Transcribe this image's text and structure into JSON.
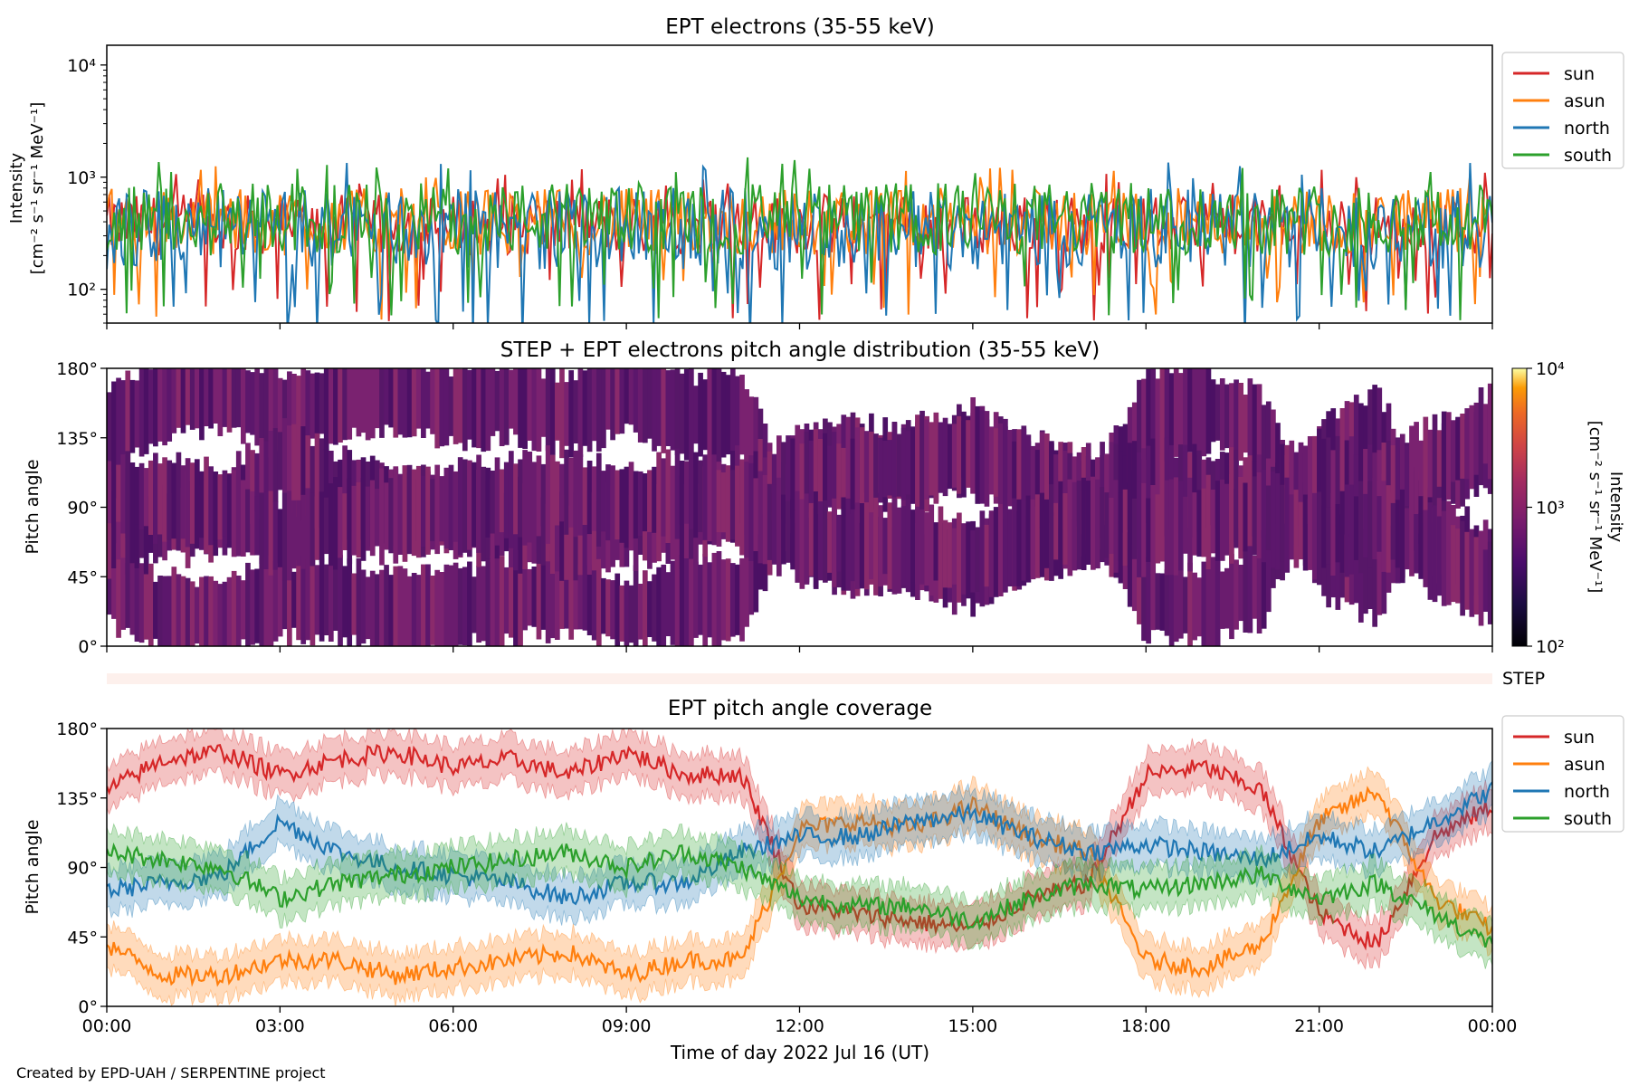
{
  "credit": "Created by EPD-UAH / SERPENTINE project",
  "xlabel": "Time of day 2022 Jul 16 (UT)",
  "time_ticks": [
    "00:00",
    "03:00",
    "06:00",
    "09:00",
    "12:00",
    "15:00",
    "18:00",
    "21:00",
    "00:00"
  ],
  "series_colors": {
    "sun": "#d62728",
    "asun": "#ff7f0e",
    "north": "#1f77b4",
    "south": "#2ca02c"
  },
  "chart_data": [
    {
      "type": "line",
      "title": "EPT electrons (35-55 keV)",
      "ylabel_line1": "Intensity",
      "ylabel_line2": "[cm⁻² s⁻¹ sr⁻¹ MeV⁻¹]",
      "yscale": "log",
      "ylim": [
        50,
        15000
      ],
      "ytick_labels": [
        "10²",
        "10³",
        "10⁴"
      ],
      "ytick_values": [
        100,
        1000,
        10000
      ],
      "xlim_hours": [
        0,
        24
      ],
      "legend_position": "outside-right",
      "series": [
        {
          "name": "sun",
          "color": "#d62728",
          "typical_range": [
            200,
            700
          ]
        },
        {
          "name": "asun",
          "color": "#ff7f0e",
          "typical_range": [
            200,
            800
          ]
        },
        {
          "name": "north",
          "color": "#1f77b4",
          "typical_range": [
            150,
            800
          ]
        },
        {
          "name": "south",
          "color": "#2ca02c",
          "typical_range": [
            200,
            900
          ]
        }
      ],
      "x_hours": [
        0,
        2,
        4,
        6,
        8,
        10,
        12,
        14,
        16,
        18,
        20,
        22,
        24
      ],
      "sun_values": [
        420,
        400,
        430,
        410,
        440,
        420,
        400,
        410,
        430,
        420,
        410,
        400,
        420
      ]
    },
    {
      "type": "heatmap",
      "title": "STEP + EPT electrons pitch angle distribution (35-55 keV)",
      "ylabel": "Pitch angle",
      "ytick_labels": [
        "0°",
        "45°",
        "90°",
        "135°",
        "180°"
      ],
      "ylim": [
        0,
        180
      ],
      "colorbar": {
        "label_line1": "Intensity",
        "label_line2": "[cm⁻² s⁻¹ sr⁻¹ MeV⁻¹]",
        "scale": "log",
        "range": [
          100,
          10000
        ],
        "tick_labels": [
          "10²",
          "10³",
          "10⁴"
        ],
        "colormap": "inferno"
      },
      "typical_intensity": 300
    },
    {
      "type": "heatmap",
      "title": "",
      "label": "STEP",
      "note": "empty strip"
    },
    {
      "type": "line",
      "title": "EPT pitch angle coverage",
      "ylabel": "Pitch angle",
      "ytick_labels": [
        "0°",
        "45°",
        "90°",
        "135°",
        "180°"
      ],
      "ylim": [
        0,
        180
      ],
      "xlim_hours": [
        0,
        24
      ],
      "legend_position": "outside-right",
      "x_hours": [
        0,
        1,
        2,
        3,
        4,
        5,
        6,
        7,
        8,
        9,
        10,
        11,
        12,
        13,
        14,
        15,
        16,
        17,
        18,
        19,
        20,
        21,
        22,
        23,
        24
      ],
      "series": [
        {
          "name": "sun",
          "color": "#d62728",
          "values": [
            140,
            160,
            165,
            150,
            160,
            165,
            155,
            160,
            150,
            165,
            150,
            150,
            65,
            60,
            55,
            50,
            70,
            80,
            150,
            155,
            140,
            60,
            40,
            110,
            130
          ]
        },
        {
          "name": "asun",
          "color": "#ff7f0e",
          "values": [
            40,
            20,
            20,
            30,
            30,
            20,
            25,
            30,
            35,
            20,
            30,
            30,
            115,
            120,
            115,
            130,
            110,
            100,
            30,
            25,
            40,
            120,
            140,
            70,
            50
          ]
        },
        {
          "name": "north",
          "color": "#1f77b4",
          "values": [
            75,
            80,
            85,
            120,
            100,
            90,
            85,
            80,
            70,
            80,
            80,
            100,
            110,
            110,
            120,
            125,
            110,
            100,
            105,
            100,
            95,
            110,
            100,
            120,
            140
          ]
        },
        {
          "name": "south",
          "color": "#2ca02c",
          "values": [
            100,
            95,
            90,
            70,
            80,
            85,
            90,
            95,
            100,
            90,
            100,
            90,
            70,
            65,
            65,
            55,
            70,
            80,
            75,
            80,
            85,
            70,
            80,
            60,
            40
          ]
        }
      ]
    }
  ]
}
